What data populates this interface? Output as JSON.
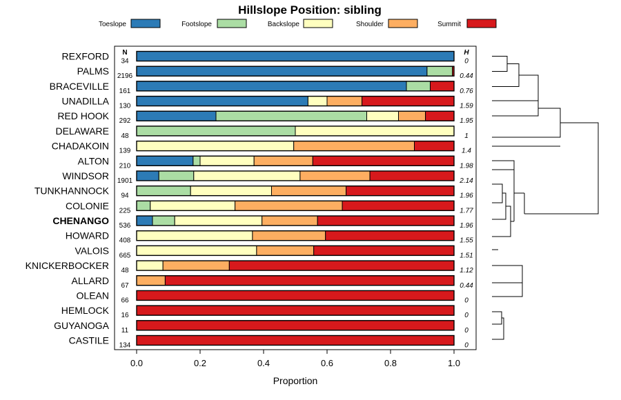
{
  "chart_data": {
    "type": "bar",
    "orientation": "horizontal-stacked",
    "title": "Hillslope Position: sibling",
    "xlabel": "Proportion",
    "ylabel": "",
    "xlim": [
      0,
      1
    ],
    "xticks": [
      "0.0",
      "0.2",
      "0.4",
      "0.6",
      "0.8",
      "1.0"
    ],
    "n_header": "N",
    "h_header": "H",
    "highlight": "CHENANGO",
    "series": [
      {
        "name": "Toeslope",
        "color": "#2c7bb6"
      },
      {
        "name": "Footslope",
        "color": "#abdda4"
      },
      {
        "name": "Backslope",
        "color": "#ffffbf"
      },
      {
        "name": "Shoulder",
        "color": "#fdae61"
      },
      {
        "name": "Summit",
        "color": "#d7191c"
      }
    ],
    "rows": [
      {
        "label": "REXFORD",
        "n": "34",
        "h": "0",
        "values": [
          1.0,
          0,
          0,
          0,
          0
        ]
      },
      {
        "label": "PALMS",
        "n": "2196",
        "h": "0.44",
        "values": [
          0.915,
          0.08,
          0,
          0,
          0.005
        ]
      },
      {
        "label": "BRACEVILLE",
        "n": "161",
        "h": "0.76",
        "values": [
          0.85,
          0.075,
          0,
          0,
          0.075
        ]
      },
      {
        "label": "UNADILLA",
        "n": "130",
        "h": "1.59",
        "values": [
          0.54,
          0,
          0.06,
          0.11,
          0.29
        ]
      },
      {
        "label": "RED HOOK",
        "n": "292",
        "h": "1.95",
        "values": [
          0.25,
          0.475,
          0.1,
          0.085,
          0.09
        ]
      },
      {
        "label": "DELAWARE",
        "n": "48",
        "h": "1",
        "values": [
          0,
          0.5,
          0.5,
          0,
          0
        ]
      },
      {
        "label": "CHADAKOIN",
        "n": "139",
        "h": "1.4",
        "values": [
          0,
          0,
          0.495,
          0.38,
          0.125
        ]
      },
      {
        "label": "ALTON",
        "n": "210",
        "h": "1.98",
        "values": [
          0.178,
          0.022,
          0.17,
          0.185,
          0.445
        ]
      },
      {
        "label": "WINDSOR",
        "n": "1901",
        "h": "2.14",
        "values": [
          0.07,
          0.11,
          0.335,
          0.22,
          0.265
        ]
      },
      {
        "label": "TUNKHANNOCK",
        "n": "94",
        "h": "1.96",
        "values": [
          0,
          0.17,
          0.255,
          0.235,
          0.34
        ]
      },
      {
        "label": "COLONIE",
        "n": "225",
        "h": "1.77",
        "values": [
          0,
          0.043,
          0.267,
          0.338,
          0.352
        ]
      },
      {
        "label": "CHENANGO",
        "n": "536",
        "h": "1.96",
        "values": [
          0.05,
          0.07,
          0.275,
          0.175,
          0.43
        ]
      },
      {
        "label": "HOWARD",
        "n": "408",
        "h": "1.55",
        "values": [
          0,
          0,
          0.365,
          0.23,
          0.405
        ]
      },
      {
        "label": "VALOIS",
        "n": "665",
        "h": "1.51",
        "values": [
          0,
          0,
          0.378,
          0.18,
          0.442
        ]
      },
      {
        "label": "KNICKERBOCKER",
        "n": "48",
        "h": "1.12",
        "values": [
          0,
          0,
          0.083,
          0.209,
          0.708
        ]
      },
      {
        "label": "ALLARD",
        "n": "67",
        "h": "0.44",
        "values": [
          0,
          0,
          0,
          0.09,
          0.91
        ]
      },
      {
        "label": "OLEAN",
        "n": "66",
        "h": "0",
        "values": [
          0,
          0,
          0,
          0,
          1.0
        ]
      },
      {
        "label": "HEMLOCK",
        "n": "16",
        "h": "0",
        "values": [
          0,
          0,
          0,
          0,
          1.0
        ]
      },
      {
        "label": "GUYANOGA",
        "n": "11",
        "h": "0",
        "values": [
          0,
          0,
          0,
          0,
          1.0
        ]
      },
      {
        "label": "CASTILE",
        "n": "134",
        "h": "0",
        "values": [
          0,
          0,
          0,
          0,
          1.0
        ]
      }
    ]
  }
}
